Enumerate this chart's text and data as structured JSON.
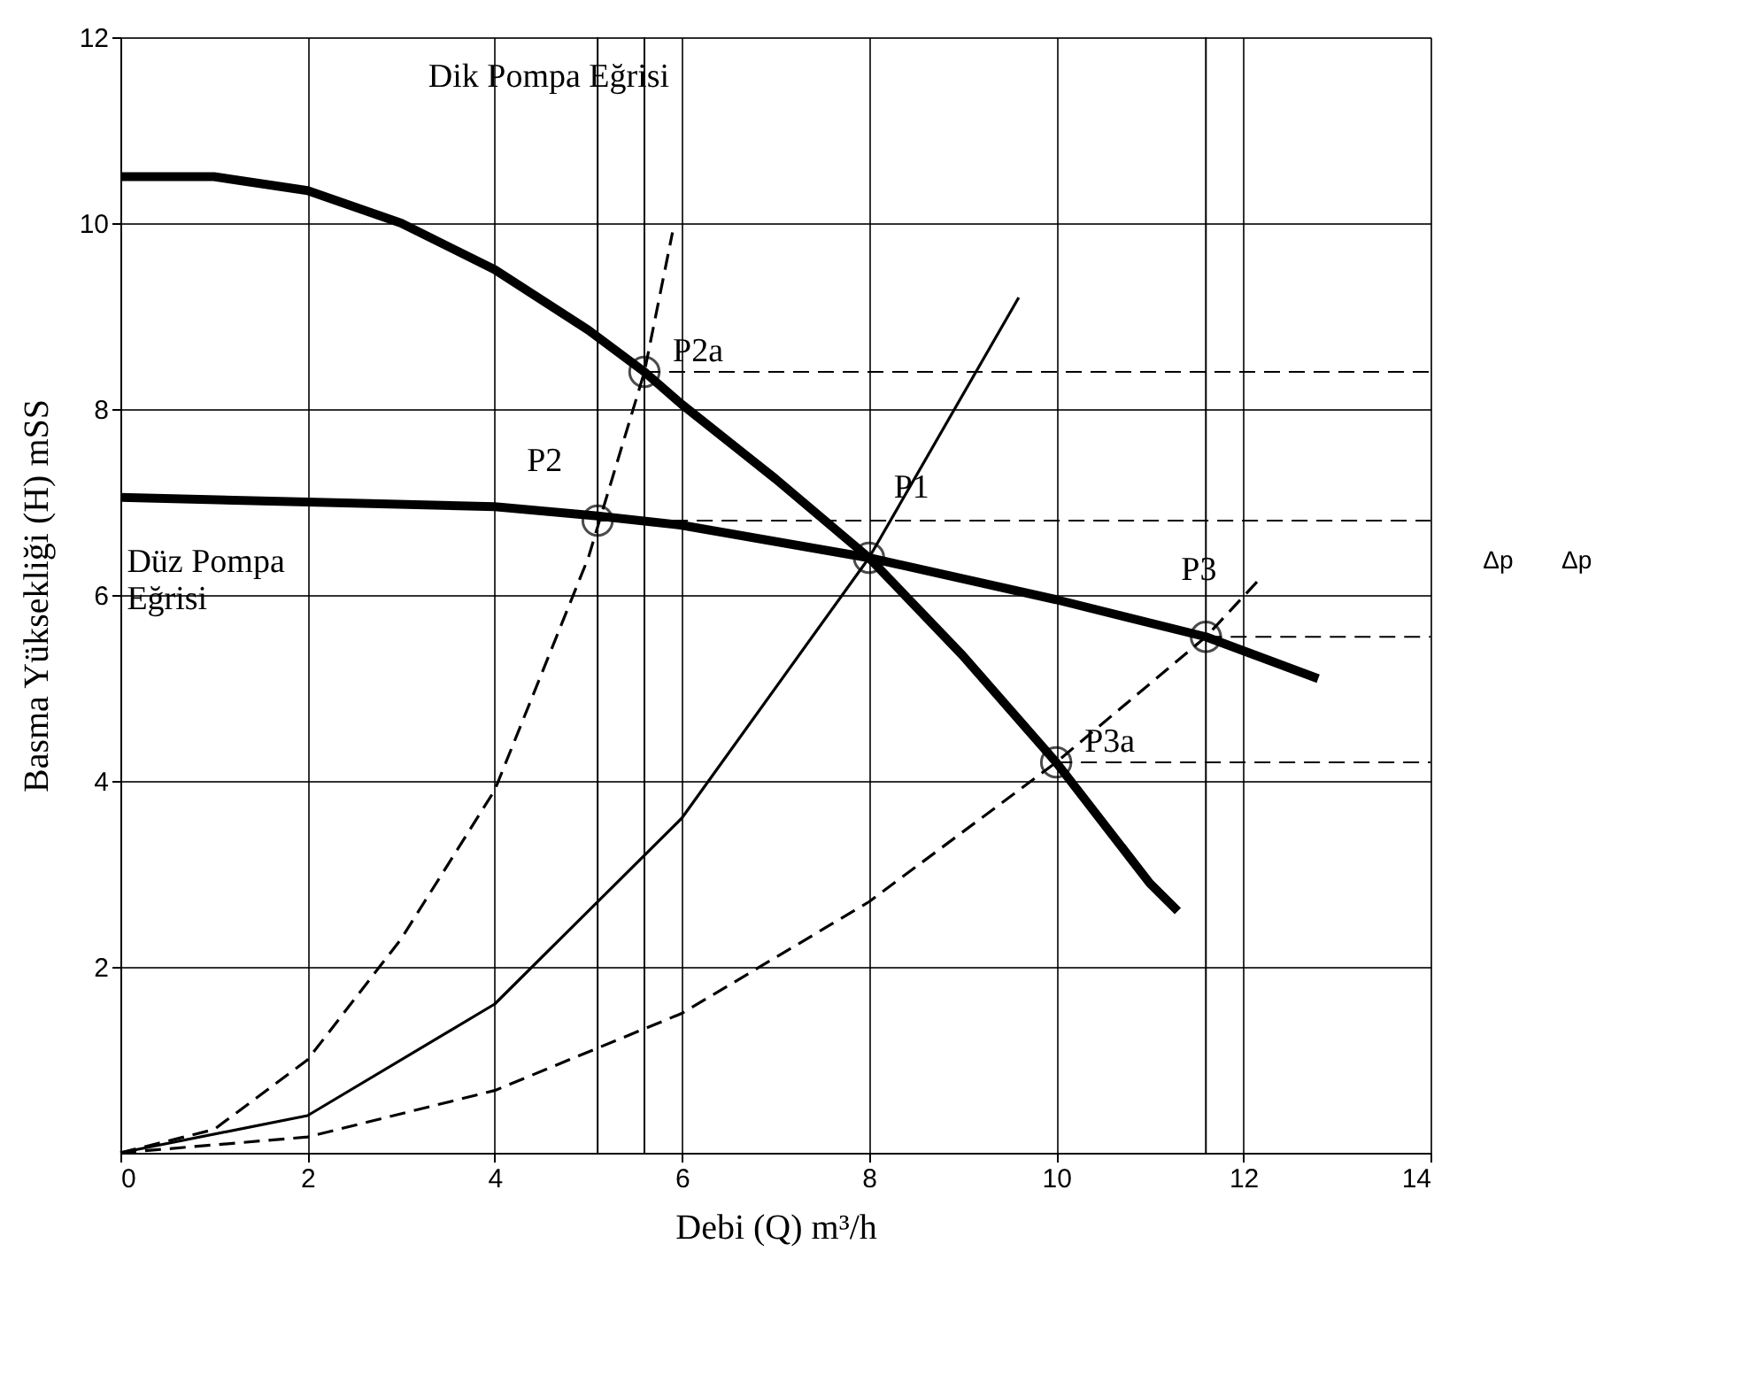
{
  "chart_data": {
    "type": "line",
    "xlabel": "Debi (Q)      m³/h",
    "ylabel": "Basma Yüksekliği (H)      mSS",
    "xlim": [
      0,
      14
    ],
    "ylim": [
      0,
      12
    ],
    "xticks": [
      0,
      2,
      4,
      6,
      8,
      10,
      12,
      14
    ],
    "yticks": [
      2,
      4,
      6,
      8,
      10,
      12
    ],
    "grid": true,
    "series": [
      {
        "color": "#000000",
        "line_style": "solid",
        "x": [
          0,
          1,
          2,
          3,
          4,
          5,
          5.6,
          6,
          7,
          8,
          9,
          10,
          11,
          11.3
        ],
        "values": [
          10.5,
          10.5,
          10.35,
          10.0,
          9.5,
          8.85,
          8.4,
          8.05,
          7.25,
          6.4,
          5.35,
          4.2,
          2.9,
          2.6
        ]
      },
      {
        "color": "#000000",
        "line_style": "solid",
        "x": [
          0,
          2,
          4,
          5.1,
          6,
          8,
          10,
          11.6,
          12.8
        ],
        "values": [
          7.05,
          7.0,
          6.95,
          6.85,
          6.75,
          6.4,
          5.95,
          5.55,
          5.1
        ]
      },
      {
        "color": "#000000",
        "line_style": "solid",
        "x": [
          0,
          2,
          4,
          6,
          8,
          9.6
        ],
        "values": [
          0,
          0.4,
          1.6,
          3.6,
          6.4,
          9.2
        ]
      },
      {
        "color": "#000000",
        "line_style": "dashed",
        "x": [
          0,
          1,
          2,
          3,
          4,
          5,
          5.6,
          5.9
        ],
        "values": [
          0,
          0.25,
          1.0,
          2.3,
          3.9,
          6.4,
          8.4,
          9.9
        ]
      },
      {
        "color": "#000000",
        "line_style": "dashed",
        "x": [
          0,
          2,
          4,
          6,
          8,
          10,
          11.6,
          12.2
        ],
        "values": [
          0,
          0.17,
          0.67,
          1.5,
          2.7,
          4.2,
          5.55,
          6.2
        ]
      },
      {
        "color": "#000000",
        "line_style": "dashed",
        "x": [
          5.6,
          14
        ],
        "values": [
          8.4,
          8.4
        ]
      },
      {
        "color": "#000000",
        "line_style": "dashed",
        "x": [
          5.1,
          14
        ],
        "values": [
          6.8,
          6.8
        ]
      },
      {
        "color": "#000000",
        "line_style": "dashed",
        "x": [
          11.6,
          14
        ],
        "values": [
          5.55,
          5.55
        ]
      },
      {
        "color": "#000000",
        "line_style": "dashed",
        "x": [
          10,
          14
        ],
        "values": [
          4.2,
          4.2
        ]
      },
      {
        "type": "scatter",
        "color": "#000000",
        "marker": "circle",
        "x": [
          8,
          5.1,
          5.6,
          11.6,
          10
        ],
        "values": [
          6.4,
          6.8,
          8.4,
          5.55,
          4.2
        ],
        "value_labels": [
          "P1",
          "P2",
          "P2a",
          "P3",
          "P3a"
        ]
      }
    ],
    "ref_lines": [
      {
        "axis": "x",
        "value": 5.1,
        "color": "#000000"
      },
      {
        "axis": "x",
        "value": 5.6,
        "color": "#000000"
      },
      {
        "axis": "x",
        "value": 11.6,
        "color": "#000000"
      }
    ],
    "annotations": [
      "Dik Pompa Eğrisi",
      "Düz Pompa\nEğrisi",
      "Δp",
      "Δp"
    ]
  }
}
